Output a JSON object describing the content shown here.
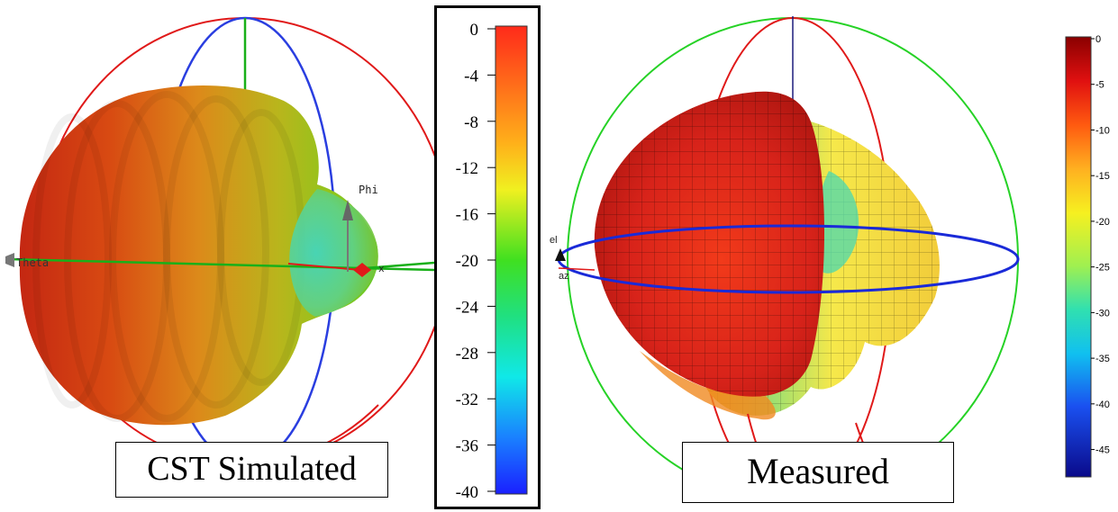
{
  "left_panel": {
    "caption": "CST Simulated",
    "theta_label": "Theta",
    "phi_label": "Phi",
    "x_label": "x"
  },
  "cst_colorbar": {
    "ticks": [
      "0",
      "-4",
      "-8",
      "-12",
      "-16",
      "-20",
      "-24",
      "-28",
      "-32",
      "-36",
      "-40"
    ],
    "tick_values": [
      0,
      -4,
      -8,
      -12,
      -16,
      -20,
      -24,
      -28,
      -32,
      -36,
      -40
    ],
    "range": [
      -40,
      0
    ]
  },
  "right_panel": {
    "caption": "Measured",
    "el_label": "el",
    "az_label": "az"
  },
  "meas_colorbar": {
    "ticks": [
      "0",
      "-5",
      "-10",
      "-15",
      "-20",
      "-25",
      "-30",
      "-35",
      "-40",
      "-45"
    ],
    "tick_values": [
      0,
      -5,
      -10,
      -15,
      -20,
      -25,
      -30,
      -35,
      -40,
      -45
    ],
    "range": [
      -48,
      0
    ]
  }
}
